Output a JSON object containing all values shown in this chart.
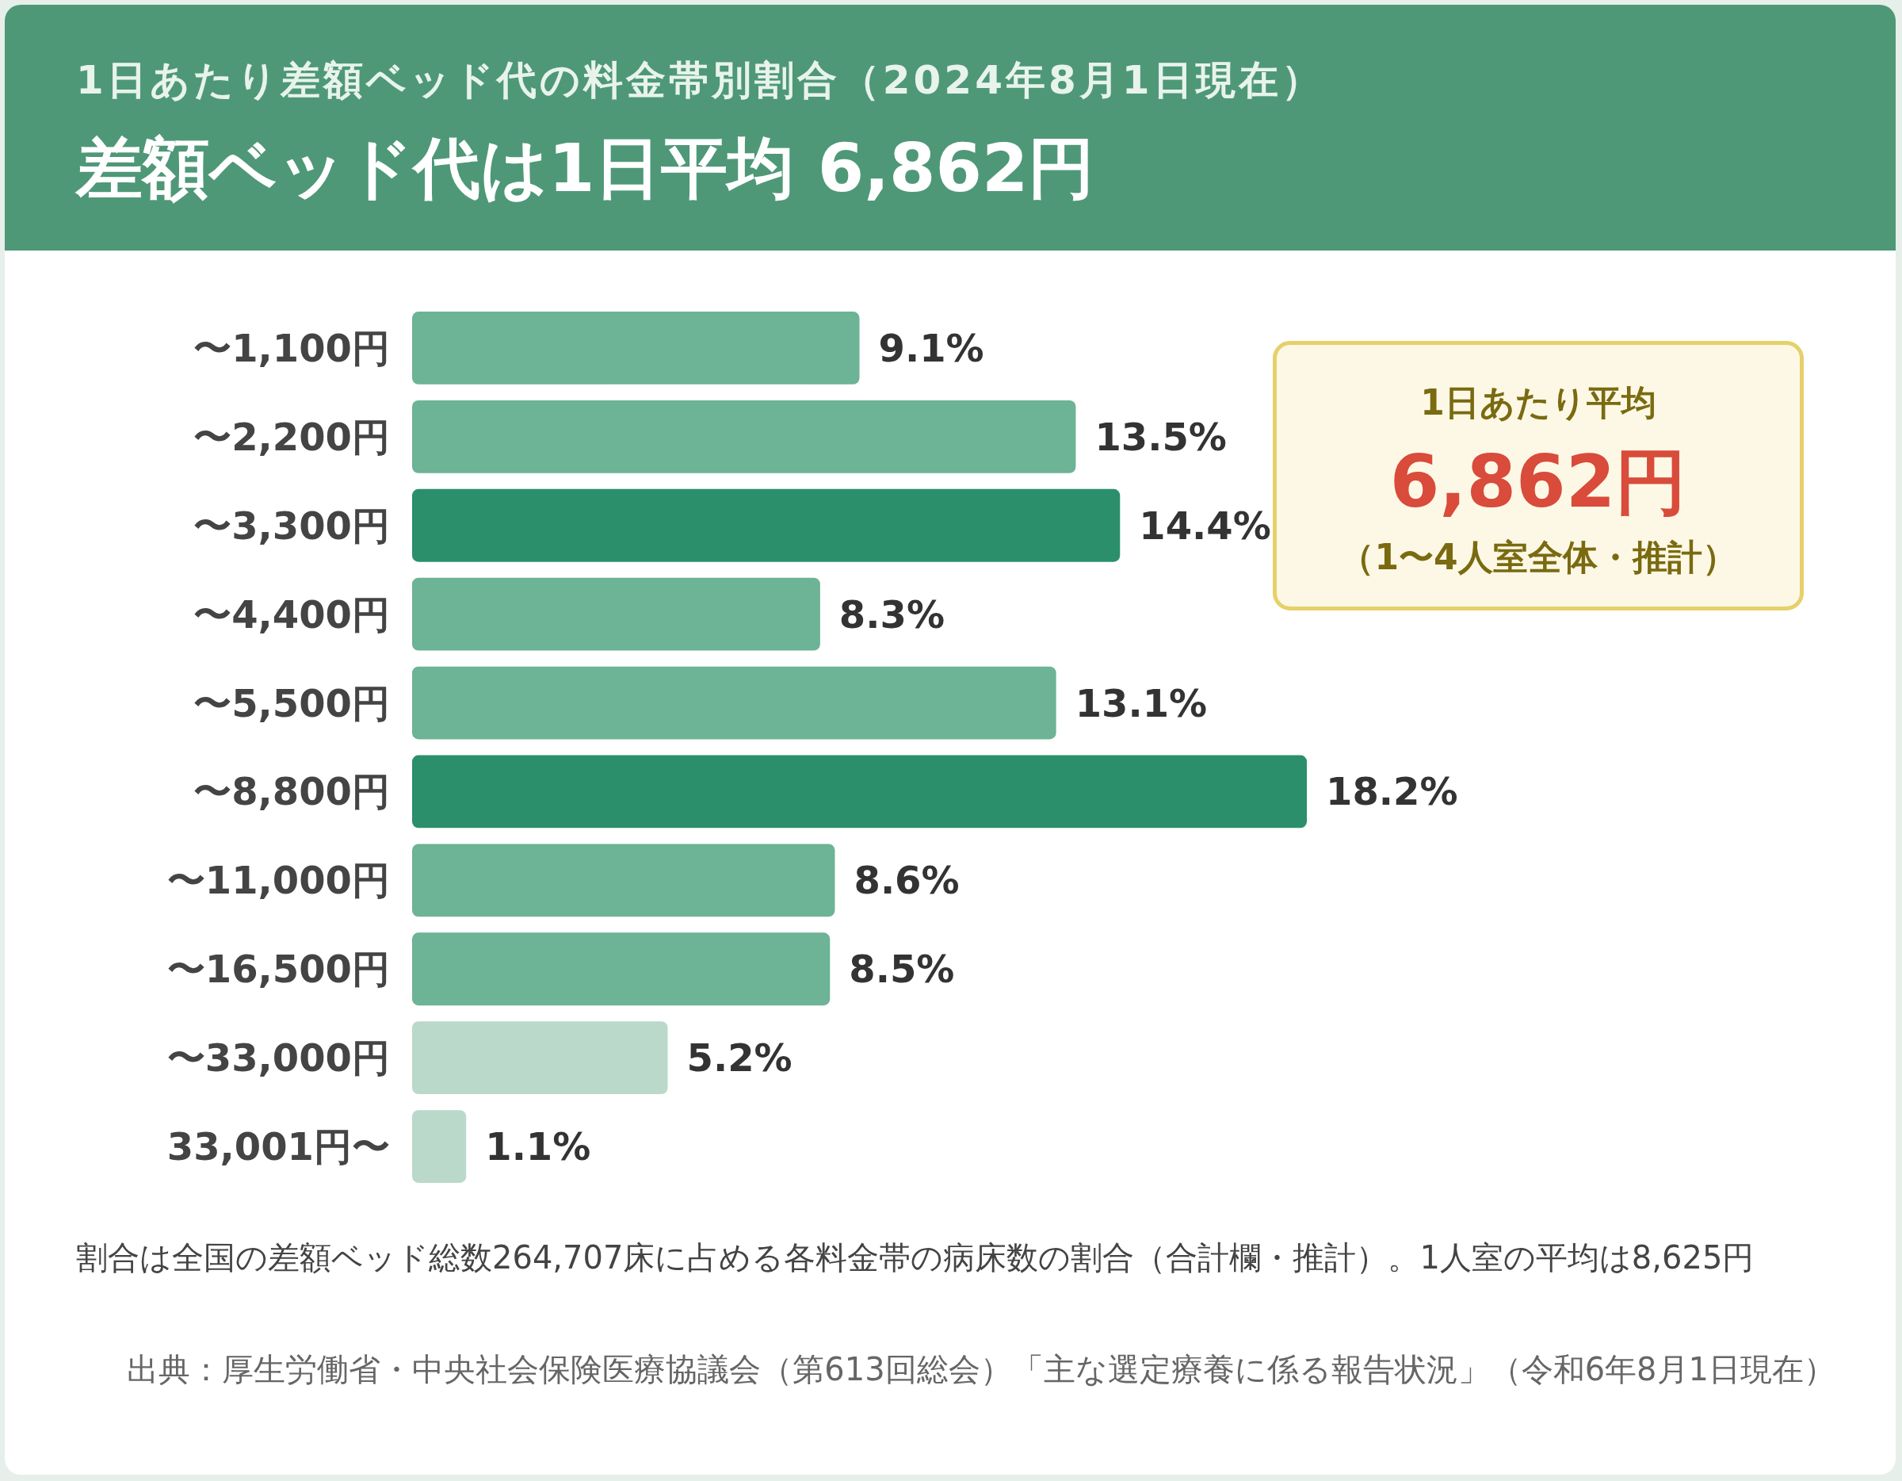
{
  "chart_data": {
    "type": "bar",
    "orientation": "horizontal",
    "title": "1日あたり差額ベッド代の料金帯別割合（2024年8月1日現在）",
    "subtitle": "差額ベッド代は1日平均 6,862円",
    "categories": [
      "〜1,100円",
      "〜2,200円",
      "〜3,300円",
      "〜4,400円",
      "〜5,500円",
      "〜8,800円",
      "〜11,000円",
      "〜16,500円",
      "〜33,000円",
      "33,001円〜"
    ],
    "values": [
      9.1,
      13.5,
      14.4,
      8.3,
      13.1,
      18.2,
      8.6,
      8.5,
      5.2,
      1.1
    ],
    "value_labels": [
      "9.1%",
      "13.5%",
      "14.4%",
      "8.3%",
      "13.1%",
      "18.2%",
      "8.6%",
      "8.5%",
      "5.2%",
      "1.1%"
    ],
    "colors": [
      "#6db396",
      "#6db396",
      "#2b8f6c",
      "#6db396",
      "#6db396",
      "#2b8f6c",
      "#6db396",
      "#6db396",
      "#bad9ca",
      "#bad9ca"
    ],
    "annotations": [
      "1日あたり平均",
      "6,862円",
      "（1〜4人室全体・推計）",
      "割合は全国の差額ベッド総数264,707床に占める各料金帯の病床数の割合（合計欄・推計）。1人室の平均は8,625円",
      "出典：厚生労働省・中央社会保険医療協議会（第613回総会）「主な選定療養に係る報告状況」（令和6年8月1日現在）"
    ]
  }
}
